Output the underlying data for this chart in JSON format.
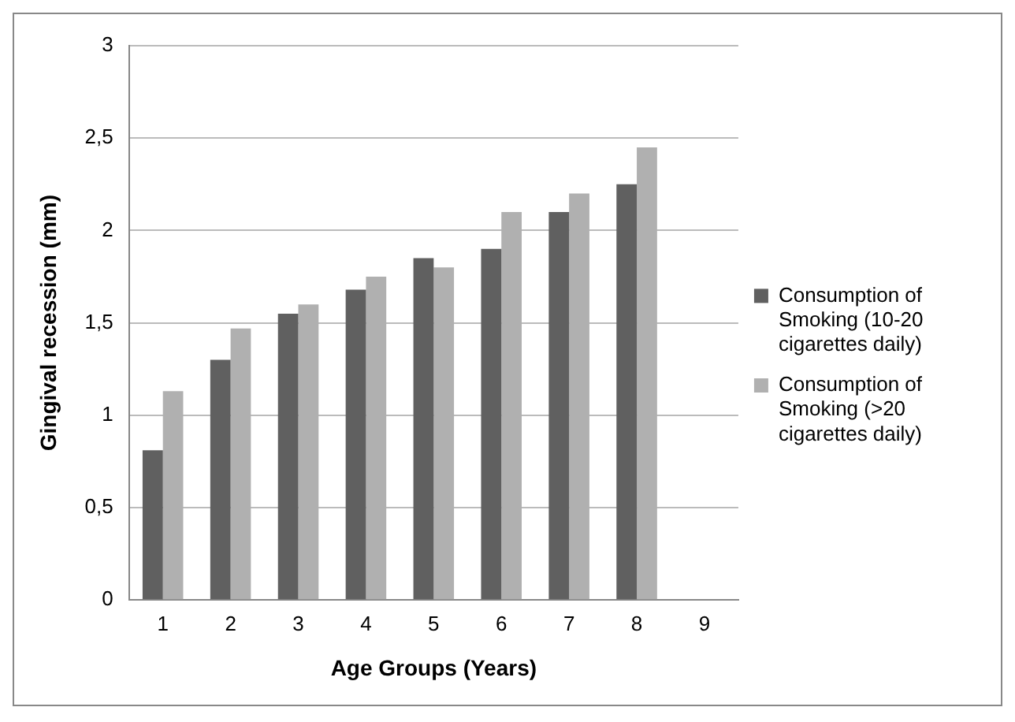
{
  "chart_data": {
    "type": "bar",
    "xlabel": "Age Groups (Years)",
    "ylabel": "Gingival recession (mm)",
    "categories": [
      "1",
      "2",
      "3",
      "4",
      "5",
      "6",
      "7",
      "8",
      "9"
    ],
    "series": [
      {
        "name": "Consumption of Smoking (10-20 cigarettes daily)",
        "color": "#606060",
        "values": [
          0.81,
          1.3,
          1.55,
          1.68,
          1.85,
          1.9,
          2.1,
          2.25,
          null
        ]
      },
      {
        "name": "Consumption of Smoking (>20 cigarettes daily)",
        "color": "#b0b0b0",
        "values": [
          1.13,
          1.47,
          1.6,
          1.75,
          1.8,
          2.1,
          2.2,
          2.45,
          null
        ]
      }
    ],
    "ylim": [
      0,
      3
    ],
    "yticks": [
      0,
      {
        "value": 0.5,
        "label": "0,5"
      },
      1,
      {
        "value": 1.5,
        "label": "1,5"
      },
      2,
      {
        "value": 2.5,
        "label": "2,5"
      },
      3
    ],
    "grid": "y",
    "legend": "right"
  }
}
